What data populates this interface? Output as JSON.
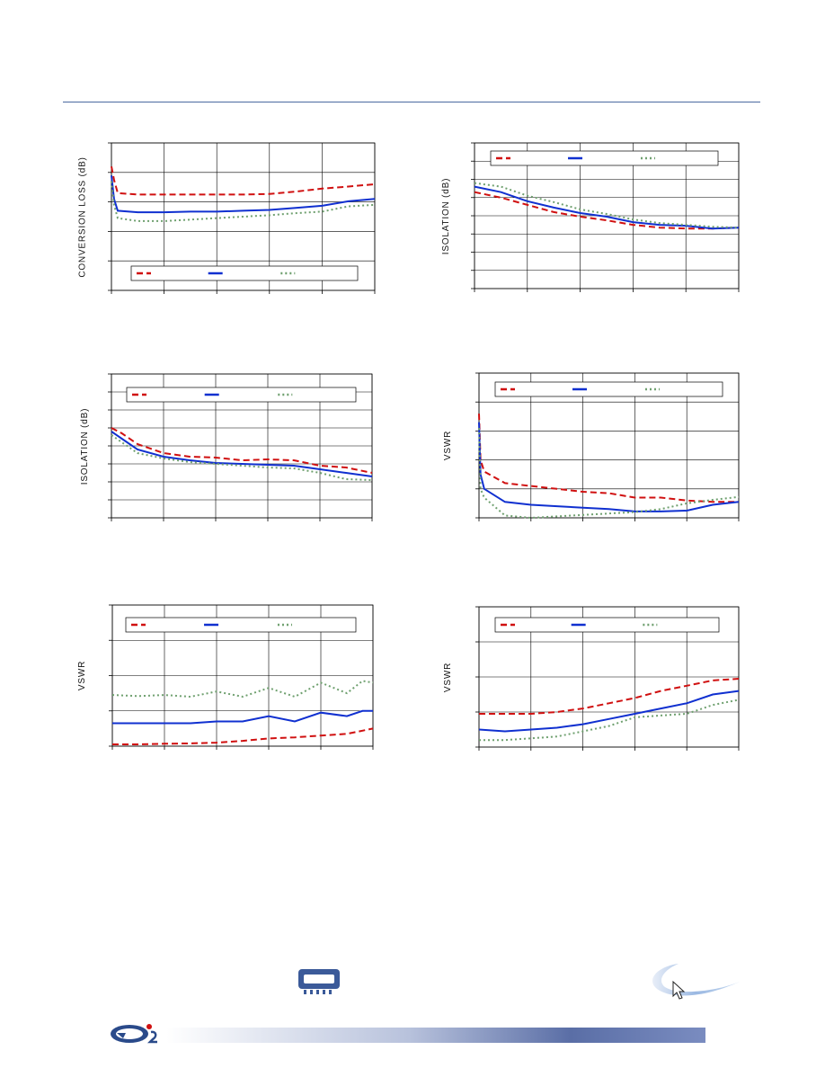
{
  "page": {
    "footer_icons": [
      "company-logo",
      "chip-package-icon",
      "swoosh-logo",
      "cursor-icon"
    ]
  },
  "chart_data": [
    {
      "id": "conversion-loss",
      "type": "line",
      "ylabel": "CONVERSION LOSS (dB)",
      "xlim": [
        0,
        5
      ],
      "ylim": [
        0,
        5
      ],
      "grid": true,
      "legend_position": "bottom",
      "series": [
        {
          "color": "#d01010",
          "dash": "dashed",
          "x": [
            0,
            0.05,
            0.12,
            0.5,
            1,
            1.5,
            2,
            2.5,
            3,
            3.5,
            4,
            4.5,
            5
          ],
          "y": [
            4.2,
            3.75,
            3.3,
            3.25,
            3.25,
            3.25,
            3.25,
            3.25,
            3.27,
            3.35,
            3.45,
            3.52,
            3.6
          ]
        },
        {
          "color": "#1030d0",
          "dash": "solid",
          "x": [
            0,
            0.05,
            0.12,
            0.5,
            1,
            1.5,
            2,
            2.5,
            3,
            3.5,
            4,
            4.5,
            5
          ],
          "y": [
            3.9,
            3.1,
            2.7,
            2.65,
            2.65,
            2.67,
            2.67,
            2.7,
            2.73,
            2.8,
            2.87,
            3.02,
            3.1
          ]
        },
        {
          "color": "#6fa06f",
          "dash": "dotted",
          "x": [
            0,
            0.05,
            0.12,
            0.5,
            1,
            1.5,
            2,
            2.5,
            3,
            3.5,
            4,
            4.5,
            5
          ],
          "y": [
            3.7,
            2.9,
            2.45,
            2.35,
            2.35,
            2.4,
            2.45,
            2.5,
            2.55,
            2.62,
            2.67,
            2.85,
            2.9
          ]
        }
      ]
    },
    {
      "id": "isolation-top",
      "type": "line",
      "ylabel": "ISOLATION (dB)",
      "xlim": [
        0,
        5
      ],
      "ylim": [
        0,
        8
      ],
      "grid": true,
      "legend_position": "top",
      "series": [
        {
          "color": "#d01010",
          "dash": "dashed",
          "x": [
            0,
            0.5,
            1,
            1.5,
            2,
            2.5,
            3,
            3.5,
            4,
            4.5,
            5
          ],
          "y": [
            5.3,
            5.0,
            4.6,
            4.2,
            3.95,
            3.75,
            3.5,
            3.35,
            3.3,
            3.3,
            3.35
          ]
        },
        {
          "color": "#1030d0",
          "dash": "solid",
          "x": [
            0,
            0.5,
            1,
            1.5,
            2,
            2.5,
            3,
            3.5,
            4,
            4.5,
            5
          ],
          "y": [
            5.6,
            5.3,
            4.8,
            4.45,
            4.15,
            3.95,
            3.65,
            3.5,
            3.45,
            3.3,
            3.35
          ]
        },
        {
          "color": "#6fa06f",
          "dash": "dotted",
          "x": [
            0,
            0.5,
            1,
            1.5,
            2,
            2.5,
            3,
            3.5,
            4,
            4.5,
            5
          ],
          "y": [
            5.8,
            5.6,
            5.1,
            4.75,
            4.35,
            4.1,
            3.8,
            3.6,
            3.5,
            3.4,
            3.35
          ]
        }
      ]
    },
    {
      "id": "isolation-middle",
      "type": "line",
      "ylabel": "ISOLATION (dB)",
      "xlim": [
        0,
        5
      ],
      "ylim": [
        0,
        8
      ],
      "grid": true,
      "legend_position": "top",
      "series": [
        {
          "color": "#d01010",
          "dash": "dashed",
          "x": [
            0,
            0.2,
            0.5,
            1,
            1.5,
            2,
            2.5,
            3,
            3.5,
            4,
            4.5,
            5
          ],
          "y": [
            5.0,
            4.7,
            4.1,
            3.6,
            3.4,
            3.35,
            3.2,
            3.25,
            3.2,
            2.9,
            2.8,
            2.5
          ]
        },
        {
          "color": "#1030d0",
          "dash": "solid",
          "x": [
            0,
            0.2,
            0.5,
            1,
            1.5,
            2,
            2.5,
            3,
            3.5,
            4,
            4.5,
            5
          ],
          "y": [
            4.8,
            4.4,
            3.8,
            3.4,
            3.2,
            3.05,
            3.0,
            2.95,
            2.9,
            2.7,
            2.5,
            2.3
          ]
        },
        {
          "color": "#6fa06f",
          "dash": "dotted",
          "x": [
            0,
            0.2,
            0.5,
            1,
            1.5,
            2,
            2.5,
            3,
            3.5,
            4,
            4.5,
            5
          ],
          "y": [
            4.6,
            4.2,
            3.6,
            3.3,
            3.1,
            3.0,
            2.9,
            2.8,
            2.75,
            2.5,
            2.15,
            2.1
          ]
        }
      ]
    },
    {
      "id": "vswr-top-right",
      "type": "line",
      "ylabel": "VSWR",
      "xlim": [
        0,
        5
      ],
      "ylim": [
        0,
        5
      ],
      "grid": true,
      "legend_position": "top",
      "series": [
        {
          "color": "#d01010",
          "dash": "dashed",
          "x": [
            0,
            0.03,
            0.1,
            0.5,
            1,
            1.5,
            2,
            2.5,
            3,
            3.5,
            4,
            4.5,
            5
          ],
          "y": [
            3.6,
            2.0,
            1.6,
            1.2,
            1.1,
            1.0,
            0.9,
            0.85,
            0.7,
            0.7,
            0.6,
            0.55,
            0.55
          ]
        },
        {
          "color": "#1030d0",
          "dash": "solid",
          "x": [
            0,
            0.03,
            0.1,
            0.5,
            1,
            1.5,
            2,
            2.5,
            3,
            3.5,
            4,
            4.5,
            5
          ],
          "y": [
            3.3,
            1.5,
            1.0,
            0.55,
            0.45,
            0.4,
            0.35,
            0.3,
            0.22,
            0.22,
            0.25,
            0.45,
            0.55
          ]
        },
        {
          "color": "#6fa06f",
          "dash": "dotted",
          "x": [
            0,
            0.03,
            0.1,
            0.5,
            1,
            1.5,
            2,
            2.5,
            3,
            3.5,
            4,
            4.5,
            5
          ],
          "y": [
            3.1,
            1.0,
            0.7,
            0.08,
            0.0,
            0.05,
            0.1,
            0.15,
            0.2,
            0.3,
            0.5,
            0.62,
            0.72
          ]
        }
      ]
    },
    {
      "id": "vswr-bottom-left",
      "type": "line",
      "ylabel": "VSWR",
      "xlim": [
        0,
        5
      ],
      "ylim": [
        0,
        4
      ],
      "grid": true,
      "legend_position": "top",
      "series": [
        {
          "color": "#d01010",
          "dash": "dashed",
          "x": [
            0,
            0.5,
            1,
            1.5,
            2,
            2.5,
            3,
            3.5,
            4,
            4.5,
            5
          ],
          "y": [
            0.05,
            0.05,
            0.07,
            0.08,
            0.1,
            0.15,
            0.22,
            0.25,
            0.3,
            0.35,
            0.5
          ]
        },
        {
          "color": "#1030d0",
          "dash": "solid",
          "x": [
            0,
            0.5,
            1,
            1.5,
            2,
            2.5,
            3,
            3.5,
            4,
            4.5,
            4.8,
            5
          ],
          "y": [
            0.65,
            0.65,
            0.65,
            0.65,
            0.7,
            0.7,
            0.85,
            0.7,
            0.95,
            0.85,
            1.0,
            1.0
          ]
        },
        {
          "color": "#6fa06f",
          "dash": "dotted",
          "x": [
            0,
            0.5,
            1,
            1.5,
            2,
            2.5,
            3,
            3.5,
            4,
            4.5,
            4.8,
            5
          ],
          "y": [
            1.45,
            1.42,
            1.45,
            1.4,
            1.55,
            1.4,
            1.65,
            1.4,
            1.8,
            1.5,
            1.85,
            1.8
          ]
        }
      ]
    },
    {
      "id": "vswr-bottom-right",
      "type": "line",
      "ylabel": "VSWR",
      "xlim": [
        0,
        5
      ],
      "ylim": [
        0,
        4
      ],
      "grid": true,
      "legend_position": "top",
      "series": [
        {
          "color": "#d01010",
          "dash": "dashed",
          "x": [
            0,
            0.5,
            1,
            1.5,
            2,
            2.5,
            3,
            3.5,
            4,
            4.5,
            5
          ],
          "y": [
            0.95,
            0.95,
            0.95,
            1.0,
            1.1,
            1.25,
            1.4,
            1.6,
            1.75,
            1.9,
            1.95
          ]
        },
        {
          "color": "#1030d0",
          "dash": "solid",
          "x": [
            0,
            0.5,
            1,
            1.5,
            2,
            2.5,
            3,
            3.5,
            4,
            4.5,
            5
          ],
          "y": [
            0.5,
            0.45,
            0.5,
            0.55,
            0.65,
            0.8,
            0.95,
            1.1,
            1.25,
            1.5,
            1.6
          ]
        },
        {
          "color": "#6fa06f",
          "dash": "dotted",
          "x": [
            0,
            0.5,
            1,
            1.5,
            2,
            2.5,
            3,
            3.5,
            4,
            4.5,
            5
          ],
          "y": [
            0.2,
            0.2,
            0.25,
            0.3,
            0.45,
            0.6,
            0.85,
            0.9,
            0.95,
            1.2,
            1.35
          ]
        }
      ]
    }
  ]
}
